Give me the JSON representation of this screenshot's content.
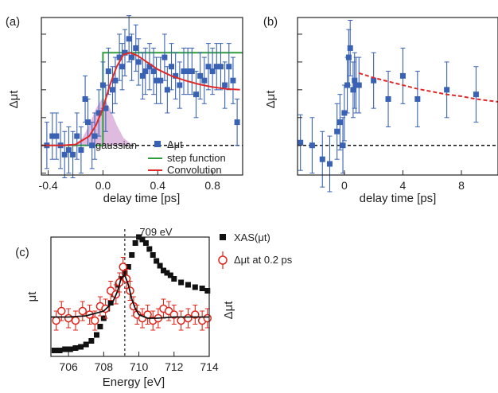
{
  "colors": {
    "marker_blue": "#3a62b4",
    "step_green": "#2e9e3c",
    "conv_red": "#e02a2a",
    "gauss_fill": "#d9b0d9",
    "xas_black": "#111111",
    "dut_red": "#e0261c"
  },
  "chart_data": [
    {
      "panel": "(a)",
      "type": "scatter",
      "xlabel": "delay time [ps]",
      "ylabel": "Δμt",
      "xlim": [
        -0.45,
        1.02
      ],
      "ylim": [
        -0.32,
        1.38
      ],
      "xticks": [
        "-0.4",
        "0.0",
        "0.4",
        "0.8"
      ],
      "xtick_values": [
        -0.4,
        0.0,
        0.4,
        0.8
      ],
      "yticks_unlabeled": [
        -0.3,
        0.0,
        0.3,
        0.6,
        0.9,
        1.2
      ],
      "gaussian_label": "gaussian",
      "legend": [
        "Δμt",
        "step function",
        "Convolution"
      ],
      "series": [
        {
          "name": "Δμt",
          "x": [
            -0.41,
            -0.37,
            -0.34,
            -0.31,
            -0.28,
            -0.25,
            -0.22,
            -0.19,
            -0.16,
            -0.13,
            -0.11,
            -0.08,
            -0.06,
            -0.03,
            0.0,
            0.02,
            0.04,
            0.07,
            0.09,
            0.12,
            0.14,
            0.16,
            0.19,
            0.21,
            0.24,
            0.26,
            0.29,
            0.31,
            0.34,
            0.37,
            0.39,
            0.42,
            0.45,
            0.47,
            0.5,
            0.53,
            0.56,
            0.59,
            0.62,
            0.65,
            0.68,
            0.71,
            0.74,
            0.77,
            0.8,
            0.83,
            0.86,
            0.89,
            0.92,
            0.95,
            0.98
          ],
          "y": [
            0.0,
            0.1,
            0.1,
            0.0,
            -0.1,
            -0.05,
            -0.1,
            0.1,
            -0.05,
            0.5,
            0.25,
            0.0,
            0.1,
            0.35,
            0.65,
            0.4,
            0.8,
            0.6,
            0.7,
            0.95,
            0.85,
            1.0,
            1.15,
            0.95,
            1.05,
            0.9,
            0.75,
            0.8,
            0.85,
            0.8,
            0.7,
            0.7,
            0.95,
            0.6,
            0.85,
            0.75,
            0.65,
            0.8,
            0.8,
            0.8,
            0.55,
            0.75,
            0.7,
            0.85,
            0.8,
            0.85,
            0.85,
            0.65,
            0.85,
            0.7,
            0.25
          ],
          "yerr": [
            0.25,
            0.25,
            0.25,
            0.25,
            0.25,
            0.25,
            0.25,
            0.25,
            0.25,
            0.25,
            0.25,
            0.25,
            0.25,
            0.25,
            0.25,
            0.25,
            0.25,
            0.25,
            0.25,
            0.25,
            0.25,
            0.25,
            0.25,
            0.25,
            0.25,
            0.25,
            0.25,
            0.25,
            0.25,
            0.25,
            0.25,
            0.25,
            0.25,
            0.25,
            0.25,
            0.25,
            0.25,
            0.25,
            0.25,
            0.25,
            0.25,
            0.25,
            0.25,
            0.25,
            0.25,
            0.25,
            0.25,
            0.25,
            0.25,
            0.25,
            0.25
          ]
        },
        {
          "name": "step function",
          "x": [
            -0.45,
            0.0,
            0.0,
            1.02
          ],
          "y": [
            0,
            0,
            1.0,
            1.0
          ]
        },
        {
          "name": "Convolution",
          "x": [
            -0.45,
            -0.3,
            -0.2,
            -0.1,
            -0.05,
            0.0,
            0.05,
            0.1,
            0.15,
            0.2,
            0.25,
            0.3,
            0.4,
            0.5,
            0.6,
            0.7,
            0.8,
            0.9,
            1.0
          ],
          "y": [
            0,
            0,
            0.01,
            0.1,
            0.22,
            0.4,
            0.65,
            0.85,
            0.98,
            1.0,
            0.97,
            0.92,
            0.82,
            0.75,
            0.7,
            0.66,
            0.63,
            0.61,
            0.6
          ]
        },
        {
          "name": "gaussian",
          "x": [
            -0.2,
            -0.15,
            -0.1,
            -0.05,
            0.0,
            0.05,
            0.1,
            0.15,
            0.2
          ],
          "y": [
            0.02,
            0.08,
            0.22,
            0.4,
            0.52,
            0.4,
            0.22,
            0.08,
            0.02
          ]
        }
      ]
    },
    {
      "panel": "(b)",
      "type": "scatter",
      "xlabel": "delay time [ps]",
      "ylabel": "Δμt",
      "xlim": [
        -3.2,
        10.5
      ],
      "ylim": [
        -0.32,
        1.38
      ],
      "xticks": [
        "0",
        "4",
        "8"
      ],
      "xtick_values": [
        0,
        4,
        8
      ],
      "series": [
        {
          "name": "Δμt",
          "x": [
            -3.0,
            -2.2,
            -1.5,
            -1.0,
            -0.5,
            -0.3,
            -0.1,
            0.0,
            0.2,
            0.3,
            0.4,
            0.6,
            0.7,
            0.8,
            1.0,
            2.0,
            3.0,
            4.0,
            5.0,
            7.0,
            9.0
          ],
          "y": [
            0.03,
            0.0,
            -0.15,
            -0.2,
            0.15,
            0.25,
            0.0,
            0.35,
            0.65,
            0.95,
            1.05,
            0.6,
            0.7,
            0.65,
            0.65,
            0.7,
            0.5,
            0.75,
            0.5,
            0.6,
            0.55
          ],
          "yerr": [
            0.3,
            0.3,
            0.3,
            0.3,
            0.3,
            0.3,
            0.3,
            0.3,
            0.3,
            0.3,
            0.3,
            0.3,
            0.3,
            0.3,
            0.3,
            0.3,
            0.3,
            0.3,
            0.3,
            0.3,
            0.3
          ]
        },
        {
          "name": "fit",
          "x": [
            1.0,
            2,
            3,
            4,
            5,
            6,
            7,
            8,
            9,
            10.5
          ],
          "y": [
            0.78,
            0.73,
            0.69,
            0.65,
            0.61,
            0.58,
            0.55,
            0.53,
            0.5,
            0.47
          ]
        }
      ]
    },
    {
      "panel": "(c)",
      "type": "scatter",
      "xlabel": "Energy [eV]",
      "ylabel_left": "μt",
      "ylabel_right": "Δμt",
      "xlim": [
        705,
        714
      ],
      "ylim": [
        0,
        1.0
      ],
      "xticks": [
        "706",
        "708",
        "710",
        "712",
        "714"
      ],
      "xtick_values": [
        706,
        708,
        710,
        712,
        714
      ],
      "vline": 709.2,
      "vline_label": "709 eV",
      "legend": [
        "XAS(μt)",
        "Δμt at 0.2 ps"
      ],
      "series": [
        {
          "name": "XAS(μt)",
          "x": [
            705.2,
            705.5,
            705.8,
            706.1,
            706.4,
            706.7,
            707.0,
            707.3,
            707.6,
            707.8,
            708.0,
            708.2,
            708.4,
            708.6,
            708.8,
            709.0,
            709.2,
            709.4,
            709.6,
            709.8,
            710.0,
            710.2,
            710.4,
            710.6,
            710.8,
            711.0,
            711.2,
            711.4,
            711.6,
            711.8,
            712.0,
            712.4,
            712.8,
            713.2,
            713.6,
            713.9
          ],
          "y": [
            0.05,
            0.05,
            0.06,
            0.06,
            0.07,
            0.08,
            0.1,
            0.13,
            0.18,
            0.25,
            0.32,
            0.4,
            0.45,
            0.52,
            0.6,
            0.65,
            0.7,
            0.75,
            0.85,
            0.95,
            1.0,
            0.98,
            0.95,
            0.9,
            0.85,
            0.8,
            0.76,
            0.72,
            0.7,
            0.68,
            0.65,
            0.62,
            0.6,
            0.58,
            0.57,
            0.55
          ]
        },
        {
          "name": "Δμt at 0.2 ps",
          "x": [
            705.3,
            705.6,
            706.0,
            706.4,
            706.8,
            707.2,
            707.5,
            707.8,
            708.1,
            708.4,
            708.7,
            708.9,
            709.1,
            709.3,
            709.5,
            709.7,
            709.9,
            710.2,
            710.5,
            710.8,
            711.1,
            711.4,
            711.7,
            712.0,
            712.4,
            712.8,
            713.2,
            713.6,
            713.9
          ],
          "y": [
            0.3,
            0.38,
            0.32,
            0.3,
            0.38,
            0.35,
            0.3,
            0.42,
            0.4,
            0.55,
            0.52,
            0.62,
            0.75,
            0.65,
            0.55,
            0.42,
            0.35,
            0.32,
            0.35,
            0.3,
            0.32,
            0.4,
            0.38,
            0.35,
            0.3,
            0.32,
            0.35,
            0.3,
            0.32
          ],
          "yerr": [
            0.08,
            0.08,
            0.08,
            0.08,
            0.08,
            0.08,
            0.08,
            0.08,
            0.08,
            0.08,
            0.08,
            0.08,
            0.08,
            0.08,
            0.08,
            0.08,
            0.08,
            0.08,
            0.08,
            0.08,
            0.08,
            0.08,
            0.08,
            0.08,
            0.08,
            0.08,
            0.08,
            0.08,
            0.08
          ]
        },
        {
          "name": "fit",
          "x": [
            705,
            706,
            707,
            708,
            708.5,
            708.8,
            709.0,
            709.2,
            709.4,
            709.6,
            709.8,
            710,
            710.5,
            711,
            712,
            713,
            714
          ],
          "y": [
            0.33,
            0.33,
            0.34,
            0.38,
            0.45,
            0.55,
            0.66,
            0.68,
            0.6,
            0.48,
            0.4,
            0.35,
            0.32,
            0.32,
            0.33,
            0.33,
            0.33
          ]
        }
      ]
    }
  ]
}
